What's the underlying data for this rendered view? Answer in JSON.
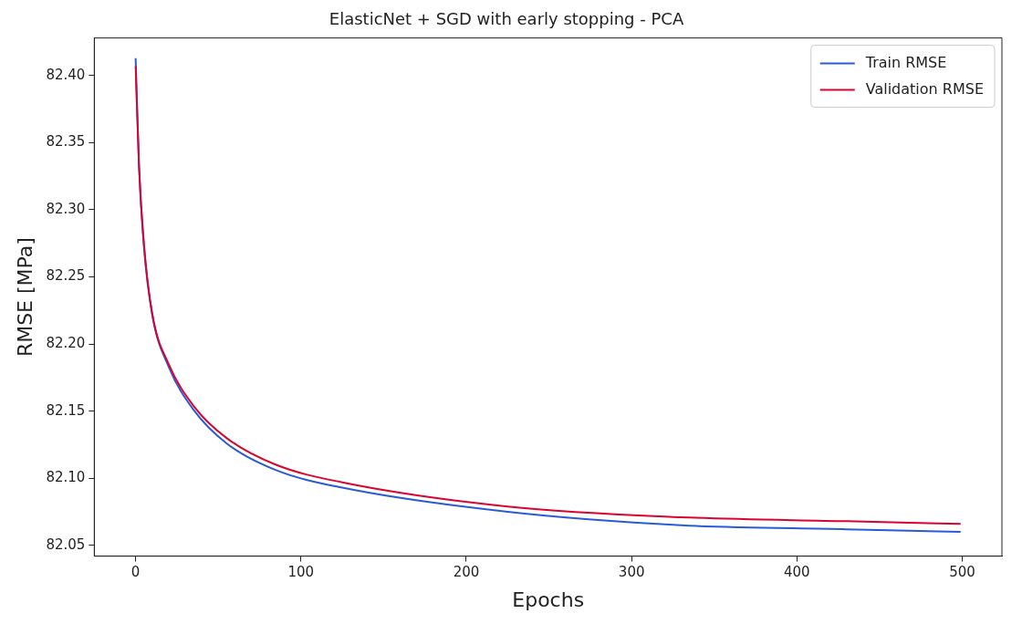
{
  "chart_data": {
    "type": "line",
    "title": "ElasticNet + SGD with early stopping - PCA",
    "xlabel": "Epochs",
    "ylabel": "RMSE [MPa]",
    "x": [
      0,
      2,
      5,
      10,
      20,
      35,
      55,
      85,
      125,
      225,
      330,
      430,
      499
    ],
    "series": [
      {
        "name": "Train RMSE",
        "color": "#2a5bd7",
        "values": [
          82.413,
          82.333,
          82.273,
          82.222,
          82.183,
          82.151,
          82.126,
          82.106,
          82.093,
          82.075,
          82.065,
          82.062,
          82.06
        ]
      },
      {
        "name": "Validation RMSE",
        "color": "#d9042f",
        "values": [
          82.407,
          82.335,
          82.275,
          82.223,
          82.185,
          82.154,
          82.13,
          82.11,
          82.097,
          82.079,
          82.071,
          82.068,
          82.066
        ]
      }
    ],
    "xlim": [
      -25,
      524
    ],
    "xticks": [
      0,
      100,
      200,
      300,
      400,
      500
    ],
    "ylim": [
      82.042,
      82.428
    ],
    "yticks": [
      82.05,
      {
        "value": 82.1,
        "label": "82.10"
      },
      82.15,
      {
        "value": 82.2,
        "label": "82.20"
      },
      82.25,
      {
        "value": 82.3,
        "label": "82.30"
      },
      82.35,
      {
        "value": 82.4,
        "label": "82.40"
      }
    ],
    "legend": "top right",
    "grid": false,
    "marker": "none",
    "line_style": "solid"
  }
}
